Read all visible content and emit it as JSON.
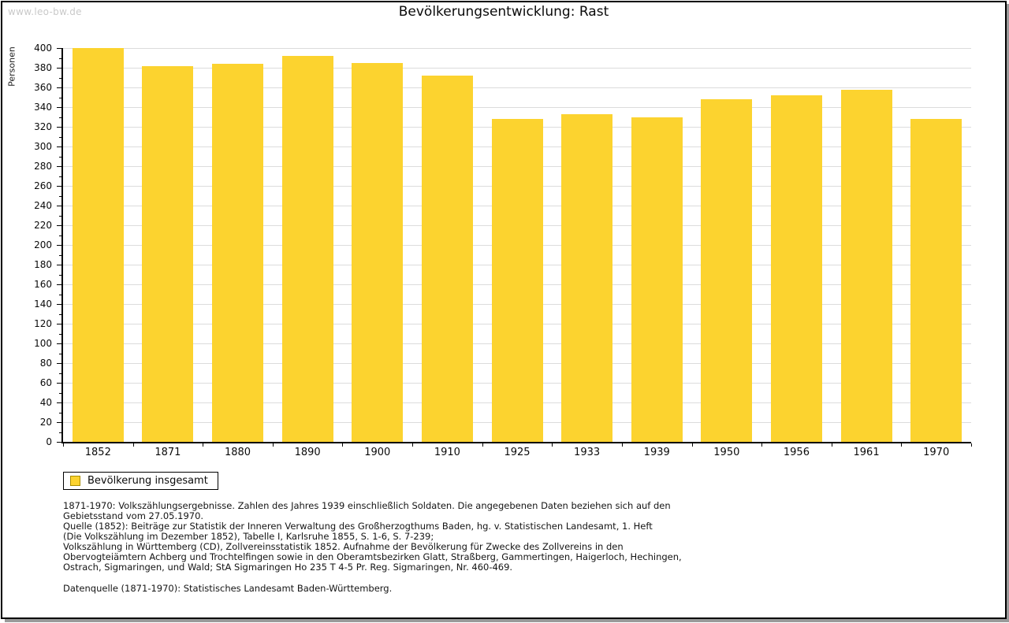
{
  "page": {
    "watermark": "www.leo-bw.de",
    "title": "Bevölkerungsentwicklung: Rast"
  },
  "chart_data": {
    "type": "bar",
    "title": "Bevölkerungsentwicklung: Rast",
    "xlabel": "",
    "ylabel": "Personen",
    "categories": [
      "1852",
      "1871",
      "1880",
      "1890",
      "1900",
      "1910",
      "1925",
      "1933",
      "1939",
      "1950",
      "1956",
      "1961",
      "1970"
    ],
    "series": [
      {
        "name": "Bevölkerung insgesamt",
        "color": "#fcd32f",
        "values": [
          400,
          382,
          384,
          392,
          385,
          372,
          328,
          333,
          330,
          348,
          352,
          358,
          328
        ]
      }
    ],
    "ylim": [
      0,
      400
    ],
    "ytick_step": 20,
    "ytick_minor_step": 10,
    "grid": true,
    "gridline_color": "#dcdcdc",
    "legend_position": "bottom-left"
  },
  "legend": {
    "label": "Bevölkerung insgesamt",
    "swatch_color": "#fcd32f"
  },
  "footer": {
    "lines": [
      "1871-1970: Volkszählungsergebnisse. Zahlen des Jahres 1939 einschließlich Soldaten. Die angegebenen Daten beziehen sich auf den",
      "Gebietsstand vom 27.05.1970.",
      "Quelle (1852): Beiträge zur Statistik der Inneren Verwaltung des Großherzogthums Baden, hg. v. Statistischen Landesamt, 1. Heft",
      "(Die Volkszählung im Dezember 1852), Tabelle I, Karlsruhe 1855, S. 1-6, S. 7-239;",
      "Volkszählung in Württemberg (CD), Zollvereinsstatistik 1852. Aufnahme der Bevölkerung für Zwecke des Zollvereins in den",
      "Obervogteiämtern Achberg und Trochtelfingen sowie in den Oberamtsbezirken Glatt, Straßberg, Gammertingen, Haigerloch, Hechingen,",
      "Ostrach, Sigmaringen, und Wald; StA Sigmaringen Ho 235 T 4-5 Pr. Reg. Sigmaringen, Nr. 460-469."
    ],
    "datasource": "Datenquelle (1871-1970): Statistisches Landesamt Baden-Württemberg."
  }
}
